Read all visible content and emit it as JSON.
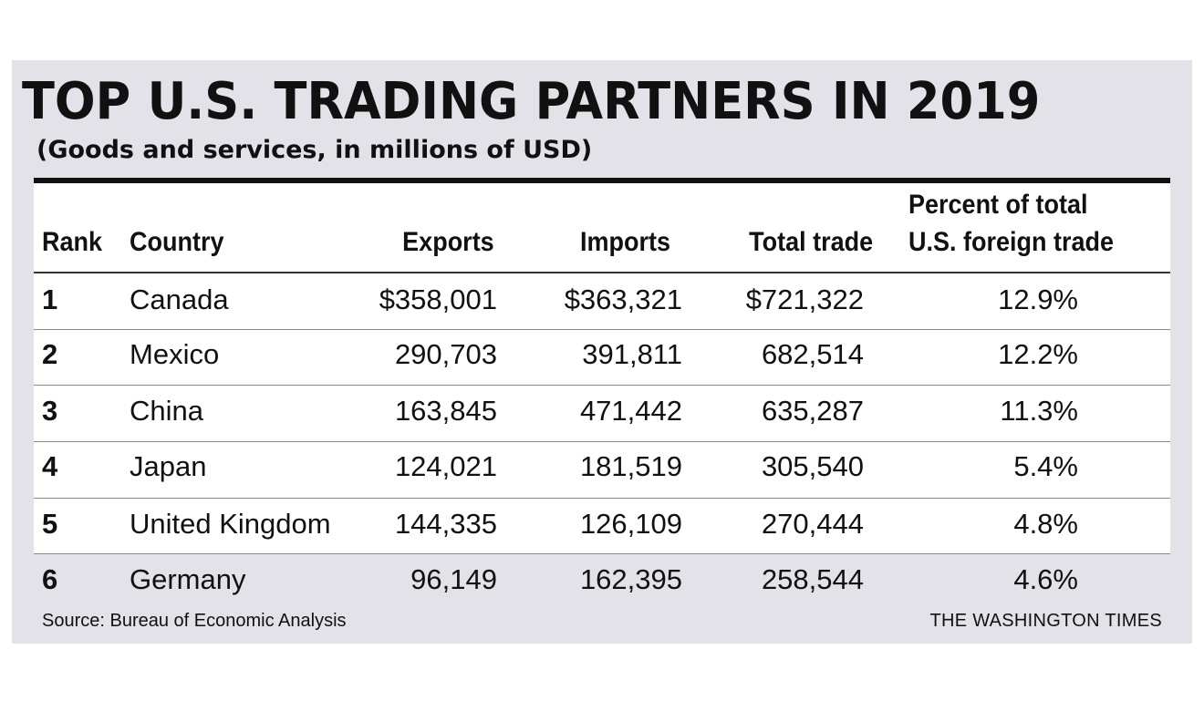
{
  "title": "TOP U.S. TRADING PARTNERS IN 2019",
  "subtitle": "(Goods and services, in millions of USD)",
  "headers": {
    "rank": "Rank",
    "country": "Country",
    "exports": "Exports",
    "imports": "Imports",
    "total": "Total trade",
    "percent_line1": "Percent of total",
    "percent_line2": "U.S. foreign trade"
  },
  "rows": [
    {
      "rank": "1",
      "country": "Canada",
      "exports": "$358,001",
      "imports": "$363,321",
      "total": "$721,322",
      "percent": "12.9%"
    },
    {
      "rank": "2",
      "country": "Mexico",
      "exports": "290,703",
      "imports": "391,811",
      "total": "682,514",
      "percent": "12.2%"
    },
    {
      "rank": "3",
      "country": "China",
      "exports": "163,845",
      "imports": "471,442",
      "total": "635,287",
      "percent": "11.3%"
    },
    {
      "rank": "4",
      "country": "Japan",
      "exports": "124,021",
      "imports": "181,519",
      "total": "305,540",
      "percent": "5.4%"
    },
    {
      "rank": "5",
      "country": "United Kingdom",
      "exports": "144,335",
      "imports": "126,109",
      "total": "270,444",
      "percent": "4.8%"
    },
    {
      "rank": "6",
      "country": "Germany",
      "exports": "96,149",
      "imports": "162,395",
      "total": "258,544",
      "percent": "4.6%"
    }
  ],
  "source": "Source: Bureau of Economic Analysis",
  "credit": "THE WASHINGTON TIMES",
  "chart_data": {
    "type": "table",
    "title": "TOP U.S. TRADING PARTNERS IN 2019",
    "subtitle": "(Goods and services, in millions of USD)",
    "columns": [
      "Rank",
      "Country",
      "Exports",
      "Imports",
      "Total trade",
      "Percent of total U.S. foreign trade"
    ],
    "rows": [
      [
        1,
        "Canada",
        358001,
        363321,
        721322,
        12.9
      ],
      [
        2,
        "Mexico",
        290703,
        391811,
        682514,
        12.2
      ],
      [
        3,
        "China",
        163845,
        471442,
        635287,
        11.3
      ],
      [
        4,
        "Japan",
        124021,
        181519,
        305540,
        5.4
      ],
      [
        5,
        "United Kingdom",
        144335,
        126109,
        270444,
        4.8
      ],
      [
        6,
        "Germany",
        96149,
        162395,
        258544,
        4.6
      ]
    ]
  }
}
